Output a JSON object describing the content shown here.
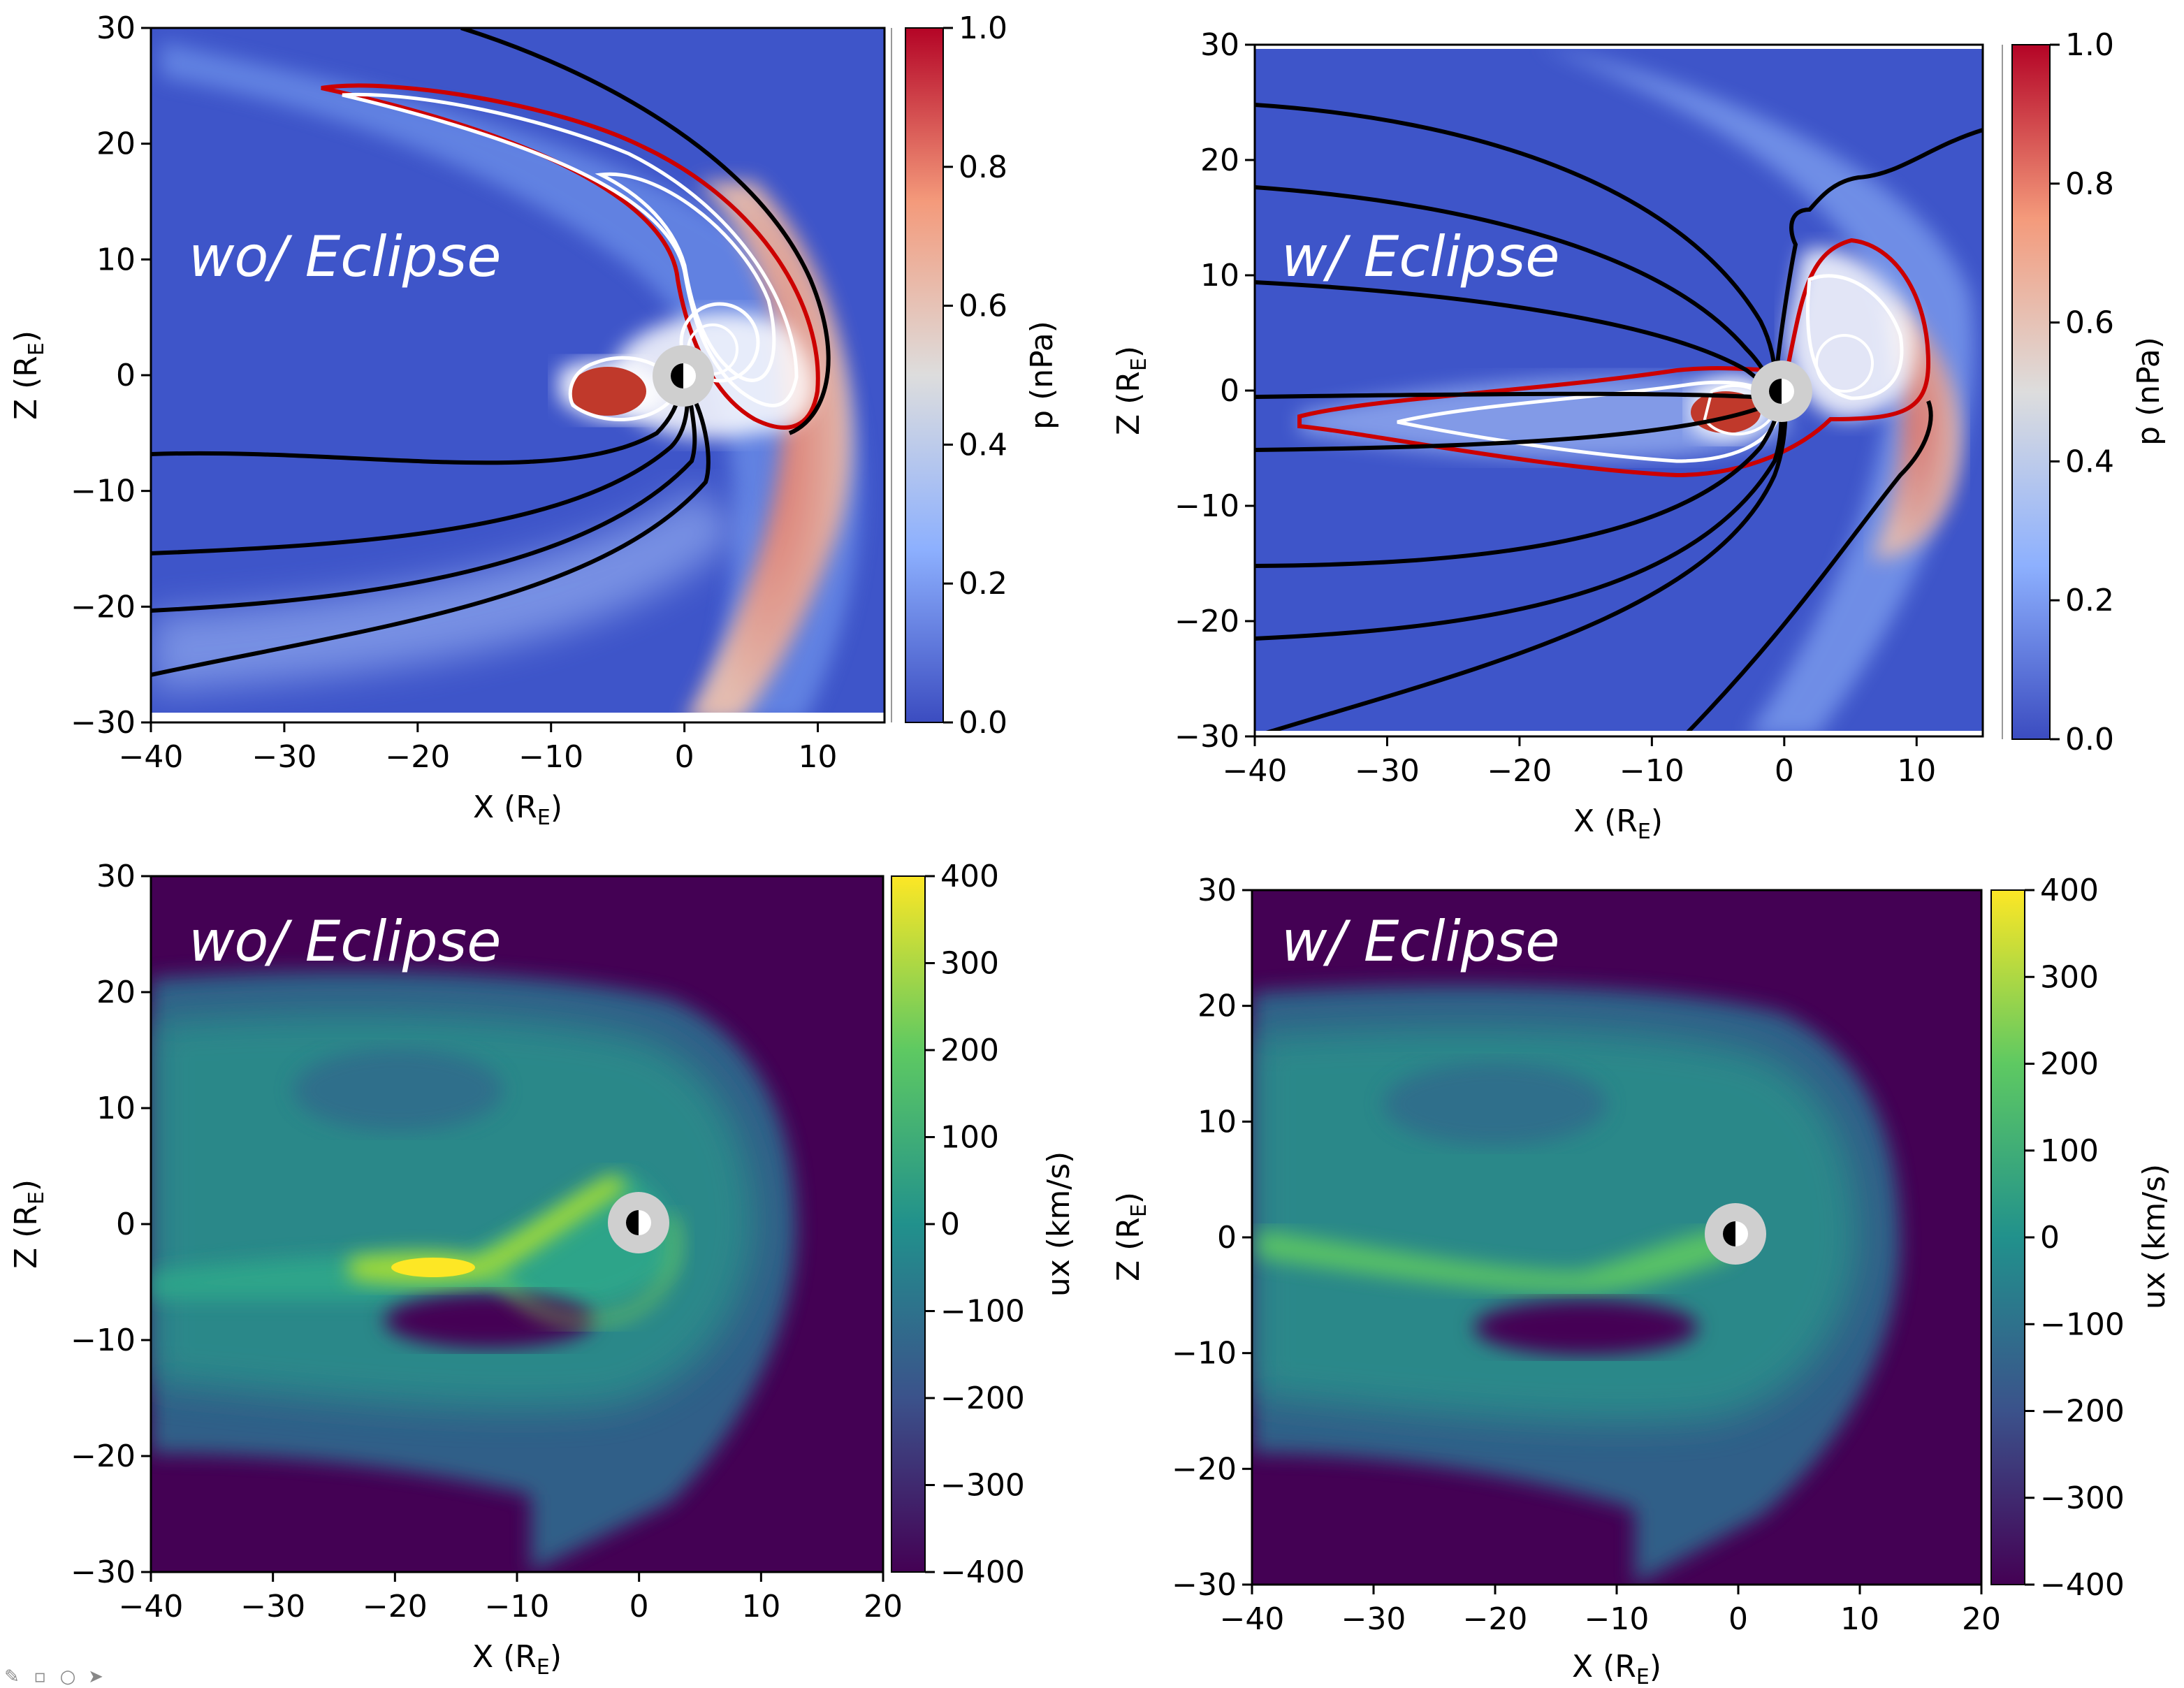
{
  "colors": {
    "pressure_low": "#3b4cc0",
    "pressure_mid": "#dddddd",
    "pressure_high": "#b40426",
    "ux_low": "#440154",
    "ux_mid": "#21918c",
    "ux_high": "#fde725",
    "contour_red": "#cc0000",
    "contour_white": "#ffffff",
    "field_line_black": "#000000"
  },
  "toolbar": {
    "icons": [
      "pencil-icon",
      "comment-icon",
      "chat-icon",
      "forward-arrow-icon"
    ]
  },
  "chart_data": [
    {
      "type": "heatmap",
      "id": "pressure-wo-eclipse",
      "panel_label": "wo/ Eclipse",
      "xlabel": "X (R_E)",
      "ylabel": "Z (R_E)",
      "xlim": [
        -40,
        15
      ],
      "ylim": [
        -30,
        30
      ],
      "xticks": [
        "−40",
        "−30",
        "−20",
        "−10",
        "0",
        "10"
      ],
      "yticks": [
        "30",
        "20",
        "10",
        "0",
        "−10",
        "−20",
        "−30"
      ],
      "colorbar": {
        "label": "p (nPa)",
        "range": [
          0.0,
          1.0
        ],
        "ticks": [
          "1.0",
          "0.8",
          "0.6",
          "0.4",
          "0.2",
          "0.0"
        ],
        "colormap": "coolwarm"
      }
    },
    {
      "type": "heatmap",
      "id": "pressure-w-eclipse",
      "panel_label": "w/ Eclipse",
      "xlabel": "X (R_E)",
      "ylabel": "Z (R_E)",
      "xlim": [
        -40,
        15
      ],
      "ylim": [
        -30,
        30
      ],
      "xticks": [
        "−40",
        "−30",
        "−20",
        "−10",
        "0",
        "10"
      ],
      "yticks": [
        "30",
        "20",
        "10",
        "0",
        "−10",
        "−20",
        "−30"
      ],
      "colorbar": {
        "label": "p (nPa)",
        "range": [
          0.0,
          1.0
        ],
        "ticks": [
          "1.0",
          "0.8",
          "0.6",
          "0.4",
          "0.2",
          "0.0"
        ],
        "colormap": "coolwarm"
      }
    },
    {
      "type": "heatmap",
      "id": "ux-wo-eclipse",
      "panel_label": "wo/ Eclipse",
      "xlabel": "X (R_E)",
      "ylabel": "Z (R_E)",
      "xlim": [
        -40,
        20
      ],
      "ylim": [
        -30,
        30
      ],
      "xticks": [
        "−40",
        "−30",
        "−20",
        "−10",
        "0",
        "10",
        "20"
      ],
      "yticks": [
        "30",
        "20",
        "10",
        "0",
        "−10",
        "−20",
        "−30"
      ],
      "colorbar": {
        "label": "ux (km/s)",
        "range": [
          -400,
          400
        ],
        "ticks": [
          "400",
          "300",
          "200",
          "100",
          "0",
          "−100",
          "−200",
          "−300",
          "−400"
        ],
        "colormap": "viridis"
      }
    },
    {
      "type": "heatmap",
      "id": "ux-w-eclipse",
      "panel_label": "w/ Eclipse",
      "xlabel": "X (R_E)",
      "ylabel": "Z (R_E)",
      "xlim": [
        -40,
        20
      ],
      "ylim": [
        -30,
        30
      ],
      "xticks": [
        "−40",
        "−30",
        "−20",
        "−10",
        "0",
        "10",
        "20"
      ],
      "yticks": [
        "30",
        "20",
        "10",
        "0",
        "−10",
        "−20",
        "−30"
      ],
      "colorbar": {
        "label": "ux (km/s)",
        "range": [
          -400,
          400
        ],
        "ticks": [
          "400",
          "300",
          "200",
          "100",
          "0",
          "−100",
          "−200",
          "−300",
          "−400"
        ],
        "colormap": "viridis"
      }
    }
  ]
}
